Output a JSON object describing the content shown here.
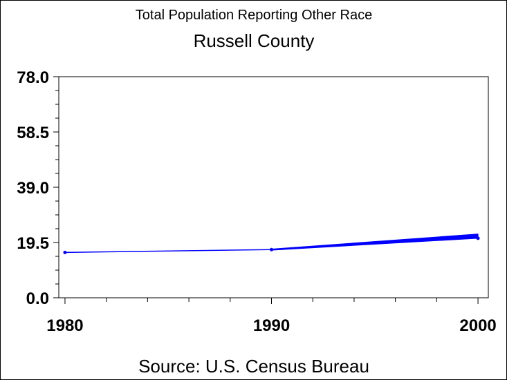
{
  "chart_data": {
    "type": "line",
    "title": "Total Population Reporting Other Race",
    "subtitle": "Russell County",
    "xlabel": "",
    "ylabel": "",
    "x": [
      1980,
      1990,
      2000
    ],
    "xlim": [
      1979.7,
      2000.5
    ],
    "ylim": [
      0,
      78
    ],
    "y_ticks": [
      "0.0",
      "19.5",
      "39.0",
      "58.5",
      "78.0"
    ],
    "x_ticks": [
      "1980",
      "1990",
      "2000"
    ],
    "series": [
      {
        "values": [
          16,
          17,
          21
        ],
        "upper_end": 22.5,
        "color": "#0000ff"
      }
    ],
    "grid": false,
    "legend": "none",
    "source": "Source: U.S. Census Bureau"
  }
}
